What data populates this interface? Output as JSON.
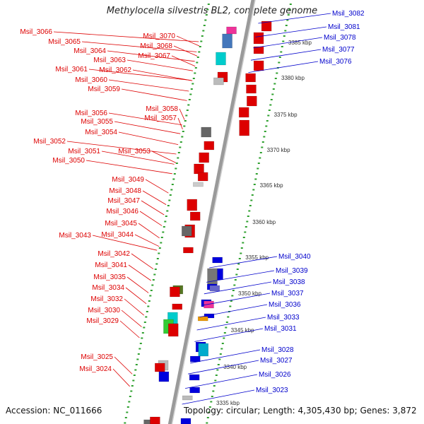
{
  "title": "Methylocella silvestris BL2, complete genome",
  "footer": {
    "accession": "Accession: NC_011666",
    "topology": "Topology: circular; Length: 4,305,430 bp; Genes: 3,872"
  },
  "colors": {
    "reverse_label": "#dd0000",
    "forward_label": "#0000cc",
    "backbone": "#9a9a9a",
    "tick": "#2ea02e"
  },
  "scale_labels": [
    "3385 kbp",
    "3380 kbp",
    "3375 kbp",
    "3370 kbp",
    "3365 kbp",
    "3360 kbp",
    "3355 kbp",
    "3350 kbp",
    "3345 kbp",
    "3340 kbp",
    "3335 kbp"
  ],
  "left_genes": [
    "Msil_3066",
    "Msil_3065",
    "Msil_3064",
    "Msil_3063",
    "Msil_3061",
    "Msil_3060",
    "Msil_3059",
    "Msil_3056",
    "Msil_3055",
    "Msil_3054",
    "Msil_3052",
    "Msil_3051",
    "Msil_3050",
    "Msil_3049",
    "Msil_3048",
    "Msil_3047",
    "Msil_3046",
    "Msil_3045",
    "Msil_3043",
    "Msil_3042",
    "Msil_3041",
    "Msil_3035",
    "Msil_3034",
    "Msil_3032",
    "Msil_3030",
    "Msil_3029",
    "Msil_3025",
    "Msil_3024"
  ],
  "mid_genes": [
    "Msil_3070",
    "Msil_3068",
    "Msil_3067",
    "Msil_3062",
    "Msil_3058",
    "Msil_3057",
    "Msil_3053",
    "Msil_3044"
  ],
  "right_genes": [
    "Msil_3082",
    "Msil_3081",
    "Msil_3078",
    "Msil_3077",
    "Msil_3076",
    "Msil_3040",
    "Msil_3039",
    "Msil_3038",
    "Msil_3037",
    "Msil_3036",
    "Msil_3033",
    "Msil_3031",
    "Msil_3028",
    "Msil_3027",
    "Msil_3026",
    "Msil_3023"
  ]
}
